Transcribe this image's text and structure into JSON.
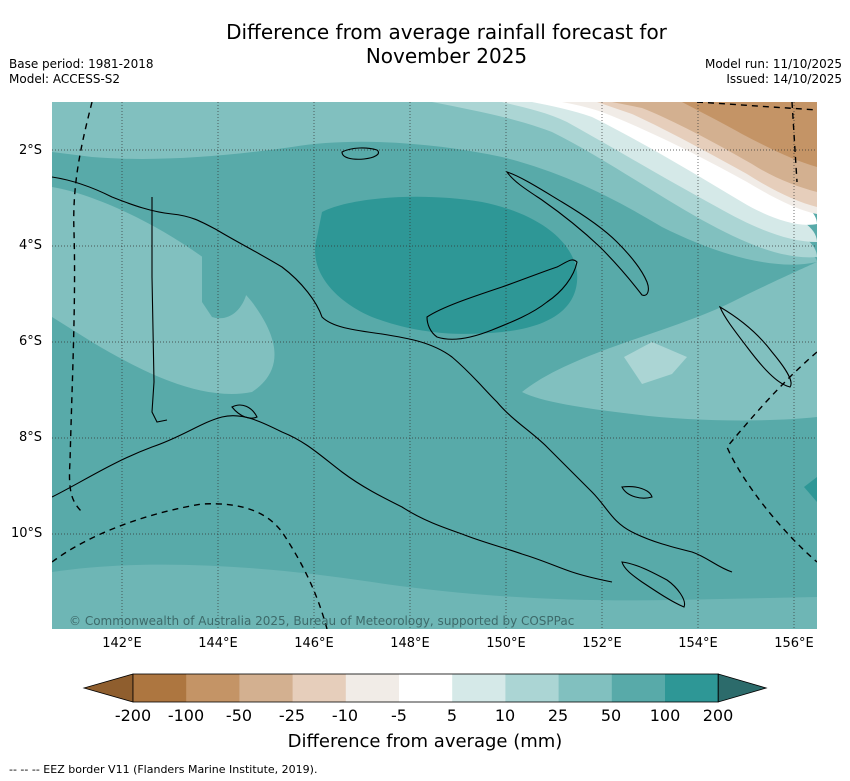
{
  "title": {
    "line1": "Difference from average rainfall forecast for",
    "line2": "November 2025"
  },
  "meta": {
    "base_period": "Base period: 1981-2018",
    "model": "Model: ACCESS-S2",
    "model_run": "Model run: 11/10/2025",
    "issued": "Issued: 14/10/2025"
  },
  "map": {
    "lat_labels": [
      "2°S",
      "4°S",
      "6°S",
      "8°S",
      "10°S"
    ],
    "lon_labels": [
      "142°E",
      "144°E",
      "146°E",
      "148°E",
      "150°E",
      "152°E",
      "154°E",
      "156°E"
    ],
    "copyright": "© Commonwealth of Australia 2025, Bureau of Meteorology, supported by COSPPac"
  },
  "colorbar": {
    "title": "Difference from average (mm)",
    "tick_labels": [
      "-200",
      "-100",
      "-50",
      "-25",
      "-10",
      "-5",
      "5",
      "10",
      "25",
      "50",
      "100",
      "200"
    ],
    "colors": [
      "#8f5e2e",
      "#ad7640",
      "#c49466",
      "#d3b090",
      "#e6cebb",
      "#f1ece7",
      "#ffffff",
      "#d5e9e8",
      "#abd5d4",
      "#81c0bf",
      "#58aaa9",
      "#2e9796",
      "#2c6b6b"
    ]
  },
  "footnote": "--  --  -- EEZ border V11 (Flanders Marine Institute, 2019)."
}
